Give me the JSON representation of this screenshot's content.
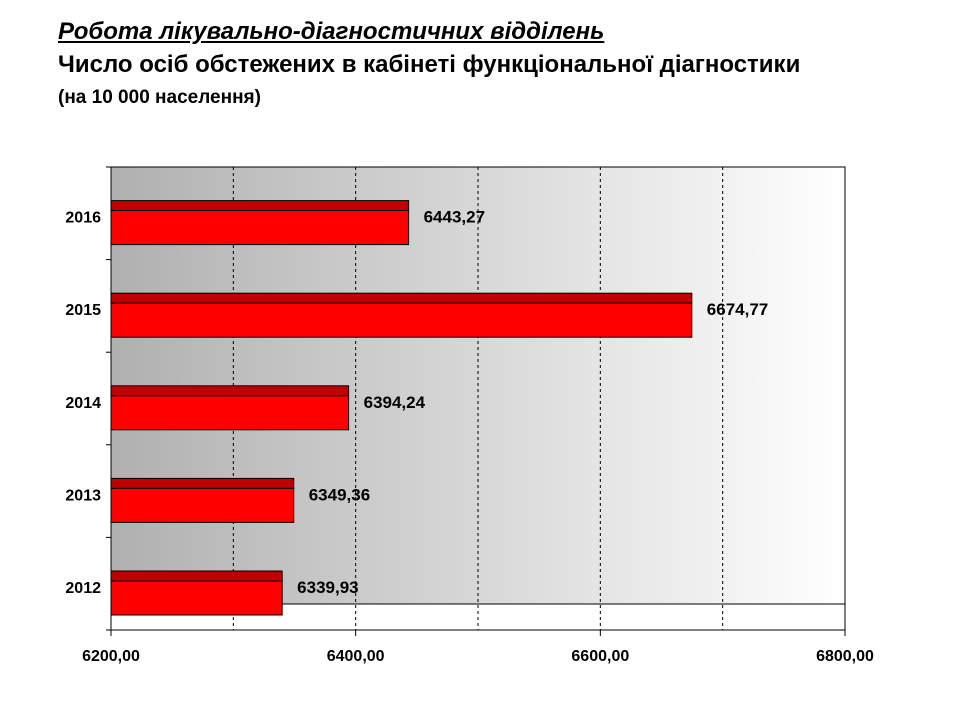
{
  "header": {
    "title": "Робота лікувально-діагностичних відділень",
    "subtitle": "Число осіб обстежених в кабінеті функціональної діагностики",
    "unit_note": "(на 10 000 населення)"
  },
  "chart_data": {
    "type": "bar",
    "orientation": "horizontal",
    "categories": [
      "2012",
      "2013",
      "2014",
      "2015",
      "2016"
    ],
    "values": [
      6339.93,
      6349.36,
      6394.24,
      6674.77,
      6443.27
    ],
    "value_labels": [
      "6339,93",
      "6349,36",
      "6394,24",
      "6674,77",
      "6443,27"
    ],
    "xlim": [
      6200,
      6800
    ],
    "x_tick_values": [
      6200,
      6400,
      6600,
      6800
    ],
    "x_tick_labels": [
      "6200,00",
      "6400,00",
      "6600,00",
      "6800,00"
    ],
    "grid": "vertical dashed",
    "bar_color": "#ff0000",
    "bar_top_color": "#c00000",
    "title": "",
    "xlabel": "",
    "ylabel": ""
  }
}
